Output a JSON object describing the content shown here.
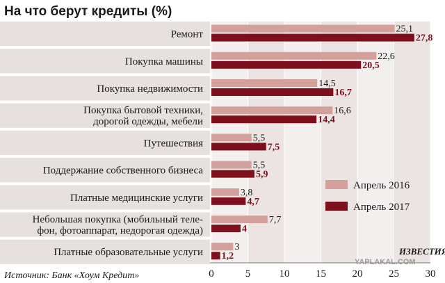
{
  "chart_data": {
    "type": "bar",
    "title": "На что берут кредиты (%)",
    "orientation": "horizontal",
    "categories": [
      [
        "Ремонт"
      ],
      [
        "Покупка машины"
      ],
      [
        "Покупка недвижимости"
      ],
      [
        "Покупка бытовой техники,",
        "дорогой одежды, мебели"
      ],
      [
        "Путешествия"
      ],
      [
        "Поддержание собственного бизнеса"
      ],
      [
        "Платные медицинские услуги"
      ],
      [
        "Небольшая покупка (мобильный теле-",
        "фон, фотоаппарат, недорогая одежда)"
      ],
      [
        "Платные образовательные услуги"
      ]
    ],
    "series": [
      {
        "name": "Апрель 2016",
        "values": [
          25.1,
          22.6,
          14.5,
          16.6,
          5.5,
          5.5,
          3.8,
          7.7,
          3
        ],
        "labels": [
          "25,1",
          "22,6",
          "14,5",
          "16,6",
          "5,5",
          "5,5",
          "3,8",
          "7,7",
          "3"
        ],
        "color": "#d4a09c"
      },
      {
        "name": "Апрель 2017",
        "values": [
          27.8,
          20.5,
          16.7,
          14.4,
          7.5,
          5.9,
          4.7,
          4,
          1.2
        ],
        "labels": [
          "27,8",
          "20,5",
          "16,7",
          "14,4",
          "7,5",
          "5,9",
          "4,7",
          "4",
          "1,2"
        ],
        "color": "#7e0f1c"
      }
    ],
    "xlim": [
      0,
      30
    ],
    "xticks": [
      0,
      5,
      10,
      15,
      20,
      25,
      30
    ],
    "xlabel": "",
    "ylabel": "",
    "grid": true,
    "legend_position": "right-middle"
  },
  "source": "Источник: Банк «Хоум Кредит»",
  "brand": "ИЗВЕСТИЯ",
  "watermark": "YAPLAKAL.COM",
  "colors": {
    "row_band": "#e6e0df",
    "plot_band_a": "#ebe4e3",
    "plot_band_b": "#f3efee"
  }
}
